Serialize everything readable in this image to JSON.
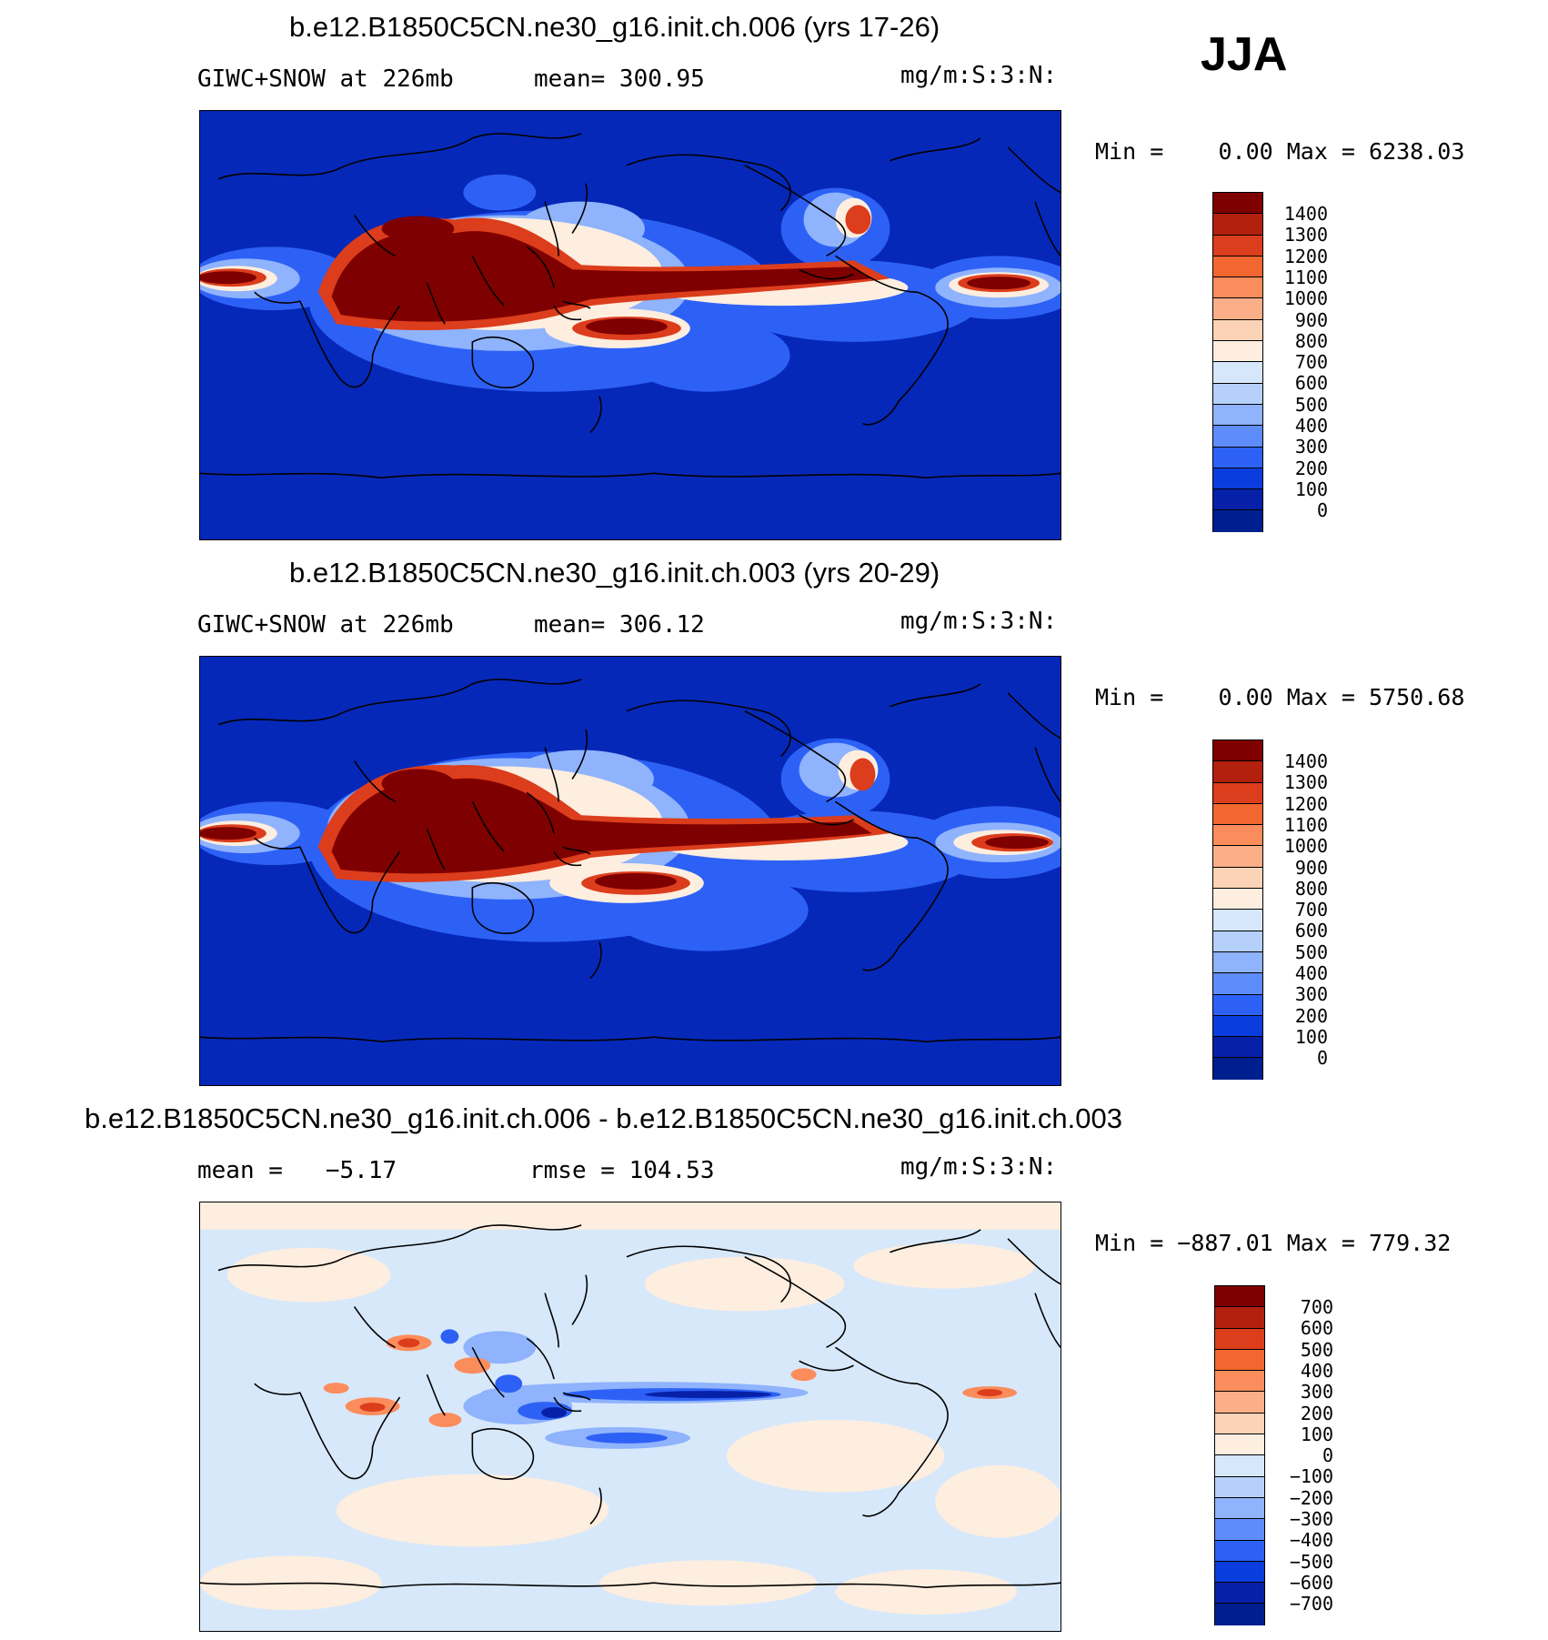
{
  "season": "JJA",
  "panels": [
    {
      "title": "b.e12.B1850C5CN.ne30_g16.init.ch.006 (yrs 17-26)",
      "left_label": "GIWC+SNOW at 226mb",
      "stat_label": "mean= 300.95",
      "units": "mg/m:S:3:N:",
      "minmax": "Min =    0.00 Max = 6238.03",
      "colorbar_labels": [
        "1400",
        "1300",
        "1200",
        "1100",
        "1000",
        "900",
        "800",
        "700",
        "600",
        "500",
        "400",
        "300",
        "200",
        "100",
        "0"
      ]
    },
    {
      "title": "b.e12.B1850C5CN.ne30_g16.init.ch.003 (yrs 20-29)",
      "left_label": "GIWC+SNOW at 226mb",
      "stat_label": "mean= 306.12",
      "units": "mg/m:S:3:N:",
      "minmax": "Min =    0.00 Max = 5750.68",
      "colorbar_labels": [
        "1400",
        "1300",
        "1200",
        "1100",
        "1000",
        "900",
        "800",
        "700",
        "600",
        "500",
        "400",
        "300",
        "200",
        "100",
        "0"
      ]
    },
    {
      "title": "b.e12.B1850C5CN.ne30_g16.init.ch.006 - b.e12.B1850C5CN.ne30_g16.init.ch.003",
      "left_label": "mean =   −5.17",
      "stat_label": "rmse = 104.53",
      "units": "mg/m:S:3:N:",
      "minmax": "Min = −887.01 Max = 779.32",
      "colorbar_labels": [
        "700",
        "600",
        "500",
        "400",
        "300",
        "200",
        "100",
        "0",
        "−100",
        "−200",
        "−300",
        "−400",
        "−500",
        "−600",
        "−700"
      ]
    }
  ],
  "colors": {
    "abs_scale": [
      "#7f0000",
      "#b3200e",
      "#dc3d1c",
      "#f2672f",
      "#fb8d5c",
      "#fbae87",
      "#fcd3b7",
      "#fdeedf",
      "#d6e7fb",
      "#b5d0fb",
      "#8fb3fc",
      "#5e8cfb",
      "#2d61f6",
      "#0a3ddd",
      "#0621a8",
      "#001f8f"
    ],
    "diff_scale": [
      "#7f0000",
      "#b3200e",
      "#dc3d1c",
      "#f2672f",
      "#fb8d5c",
      "#fbae87",
      "#fcd3b7",
      "#fdeedf",
      "#d6e7fb",
      "#b5d0fb",
      "#8fb3fc",
      "#5e8cfb",
      "#2d61f6",
      "#0a3ddd",
      "#0621a8",
      "#001f8f"
    ],
    "map_background_abs": "#0628b8",
    "map_background_diff": "#d8e8fb"
  }
}
